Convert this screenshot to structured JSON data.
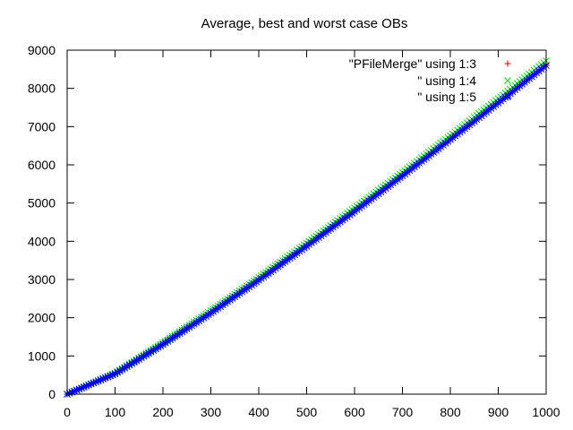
{
  "chart_data": {
    "type": "scatter",
    "title": "Average, best and worst case OBs",
    "xlim": [
      0,
      1000
    ],
    "ylim": [
      0,
      9000
    ],
    "x_ticks": [
      0,
      100,
      200,
      300,
      400,
      500,
      600,
      700,
      800,
      900,
      1000
    ],
    "y_ticks": [
      0,
      1000,
      2000,
      3000,
      4000,
      5000,
      6000,
      7000,
      8000,
      9000
    ],
    "grid": false,
    "legend_position": "top-right",
    "x": [
      0,
      100,
      200,
      300,
      400,
      500,
      600,
      700,
      800,
      900,
      1000
    ],
    "series": [
      {
        "name": "\"PFileMerge\" using 1:3",
        "marker": "plus",
        "color": "#cc0000",
        "values": [
          0,
          540,
          1320,
          2150,
          3010,
          3900,
          4810,
          5740,
          6690,
          7650,
          8640
        ]
      },
      {
        "name": "\" using 1:4",
        "marker": "cross",
        "color": "#00cc00",
        "values": [
          0,
          550,
          1340,
          2180,
          3050,
          3950,
          4870,
          5800,
          6760,
          7730,
          8720
        ]
      },
      {
        "name": "\" using 1:5",
        "marker": "star",
        "color": "#0000ee",
        "values": [
          0,
          530,
          1300,
          2120,
          2980,
          3870,
          4780,
          5710,
          6660,
          7620,
          8600
        ]
      }
    ]
  }
}
